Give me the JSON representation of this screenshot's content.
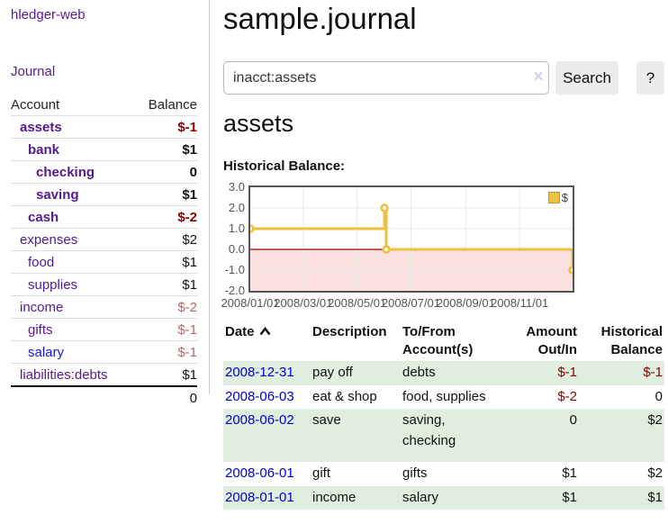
{
  "sidebar": {
    "brand": "hledger-web",
    "nav_journal": "Journal",
    "table_header": {
      "account": "Account",
      "balance": "Balance"
    },
    "accounts": [
      {
        "name": "assets",
        "level": 1,
        "bold": true,
        "balance": "$-1",
        "balance_class": "neg"
      },
      {
        "name": "bank",
        "level": 2,
        "bold": true,
        "balance": "$1",
        "balance_class": "pos"
      },
      {
        "name": "checking",
        "level": 3,
        "bold": true,
        "balance": "0",
        "balance_class": "pos"
      },
      {
        "name": "saving",
        "level": 3,
        "bold": true,
        "balance": "$1",
        "balance_class": "pos"
      },
      {
        "name": "cash",
        "level": 2,
        "bold": true,
        "balance": "$-2",
        "balance_class": "neg"
      },
      {
        "name": "expenses",
        "level": 1,
        "bold": false,
        "balance": "$2",
        "balance_class": "pos"
      },
      {
        "name": "food",
        "level": 2,
        "bold": false,
        "balance": "$1",
        "balance_class": "pos"
      },
      {
        "name": "supplies",
        "level": 2,
        "bold": false,
        "balance": "$1",
        "balance_class": "pos"
      },
      {
        "name": "income",
        "level": 1,
        "bold": false,
        "balance": "$-2",
        "balance_class": "neg-soft"
      },
      {
        "name": "gifts",
        "level": 2,
        "bold": false,
        "balance": "$-1",
        "balance_class": "neg-soft"
      },
      {
        "name": "salary",
        "level": 2,
        "bold": false,
        "link_color": "blue",
        "balance": "$-1",
        "balance_class": "neg-soft"
      },
      {
        "name": "liabilities:debts",
        "level": 1,
        "bold": false,
        "balance": "$1",
        "balance_class": "pos"
      }
    ],
    "total": "0"
  },
  "header": {
    "title": "sample.journal"
  },
  "search": {
    "value": "inacct:assets",
    "clear_icon": "×",
    "search_button": "Search",
    "help_button": "?"
  },
  "content": {
    "account_heading": "assets",
    "chart_title": "Historical Balance:"
  },
  "chart_data": {
    "type": "line",
    "step": true,
    "title": "Historical Balance",
    "x_range": [
      "2008-01-01",
      "2008-12-31"
    ],
    "ylim": [
      -2,
      3
    ],
    "y_ticks": [
      "3.0",
      "2.0",
      "1.0",
      "0.0",
      "-1.0",
      "-2.0"
    ],
    "x_ticks": [
      {
        "label": "2008/01/01",
        "date": "2008-01-01"
      },
      {
        "label": "2008/03/01",
        "date": "2008-03-01"
      },
      {
        "label": "2008/05/01",
        "date": "2008-05-01"
      },
      {
        "label": "2008/07/01",
        "date": "2008-07-01"
      },
      {
        "label": "2008/09/01",
        "date": "2008-09-01"
      },
      {
        "label": "2008/11/01",
        "date": "2008-11-01"
      }
    ],
    "series": [
      {
        "name": "$",
        "color": "#edc240",
        "points": [
          [
            "2008-01-01",
            1
          ],
          [
            "2008-06-01",
            2
          ],
          [
            "2008-06-03",
            0
          ],
          [
            "2008-12-31",
            -1
          ]
        ]
      }
    ],
    "legend": {
      "label": "$",
      "position": "top-right"
    },
    "grid": true,
    "gridline_color": "#e8e8e8",
    "zero_line_color": "#a40000",
    "negative_region_color": "#fbe0e0"
  },
  "register": {
    "headers": [
      {
        "label": "Date",
        "sorted": "asc"
      },
      {
        "label": "Description"
      },
      {
        "label": "To/From Account(s)"
      },
      {
        "label": "Amount Out/In"
      },
      {
        "label": "Historical Balance"
      }
    ],
    "rows": [
      {
        "date": "2008-12-31",
        "description": "pay off",
        "accounts": "debts",
        "amount": "$-1",
        "amount_class": "neg",
        "balance": "$-1",
        "balance_class": "neg"
      },
      {
        "date": "2008-06-03",
        "description": "eat & shop",
        "accounts": "food, supplies",
        "amount": "$-2",
        "amount_class": "neg",
        "balance": "0",
        "balance_class": "pos"
      },
      {
        "date": "2008-06-02",
        "description": "save",
        "accounts": "saving, checking",
        "amount": "0",
        "amount_class": "pos",
        "balance": "$2",
        "balance_class": "pos",
        "tall": true
      },
      {
        "date": "2008-06-01",
        "description": "gift",
        "accounts": "gifts",
        "amount": "$1",
        "amount_class": "pos",
        "balance": "$2",
        "balance_class": "pos"
      },
      {
        "date": "2008-01-01",
        "description": "income",
        "accounts": "salary",
        "amount": "$1",
        "amount_class": "pos",
        "balance": "$1",
        "balance_class": "pos"
      }
    ]
  },
  "colors": {
    "link_purple": "#551a8b",
    "link_blue": "#0000cc",
    "negative": "#8b0000",
    "negative_soft": "#b26666",
    "row_green": "#dfeedf",
    "series_gold": "#edc240"
  }
}
